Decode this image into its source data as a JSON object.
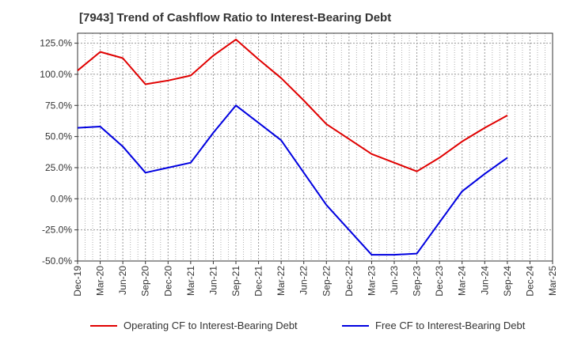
{
  "chart_data": {
    "type": "line",
    "title": "[7943]  Trend of Cashflow Ratio to Interest-Bearing Debt",
    "categories": [
      "Dec-19",
      "Mar-20",
      "Jun-20",
      "Sep-20",
      "Dec-20",
      "Mar-21",
      "Jun-21",
      "Sep-21",
      "Dec-21",
      "Mar-22",
      "Jun-22",
      "Sep-22",
      "Dec-22",
      "Mar-23",
      "Jun-23",
      "Sep-23",
      "Dec-23",
      "Mar-24",
      "Jun-24",
      "Sep-24",
      "Dec-24",
      "Mar-25"
    ],
    "yticks": [
      125,
      100,
      75,
      50,
      25,
      0,
      -25,
      -50
    ],
    "ytick_labels": [
      "125.0%",
      "100.0%",
      "75.0%",
      "50.0%",
      "25.0%",
      "0.0%",
      "-25.0%",
      "-50.0%"
    ],
    "ylim": [
      -50,
      133
    ],
    "grid": true,
    "legend_position": "bottom",
    "series": [
      {
        "name": "Operating CF to Interest-Bearing Debt",
        "color": "#e00000",
        "values": [
          103,
          118,
          113,
          92,
          95,
          99,
          115,
          128,
          112,
          97,
          79,
          60,
          48,
          36,
          29,
          22,
          33,
          46,
          57,
          67,
          null,
          null
        ]
      },
      {
        "name": "Free CF to Interest-Bearing Debt",
        "color": "#0000e0",
        "values": [
          57,
          58,
          42,
          21,
          25,
          29,
          53,
          75,
          61,
          47,
          21,
          -5,
          -25,
          -45,
          -45,
          -44,
          -19,
          6,
          20,
          33,
          null,
          null
        ]
      }
    ]
  }
}
